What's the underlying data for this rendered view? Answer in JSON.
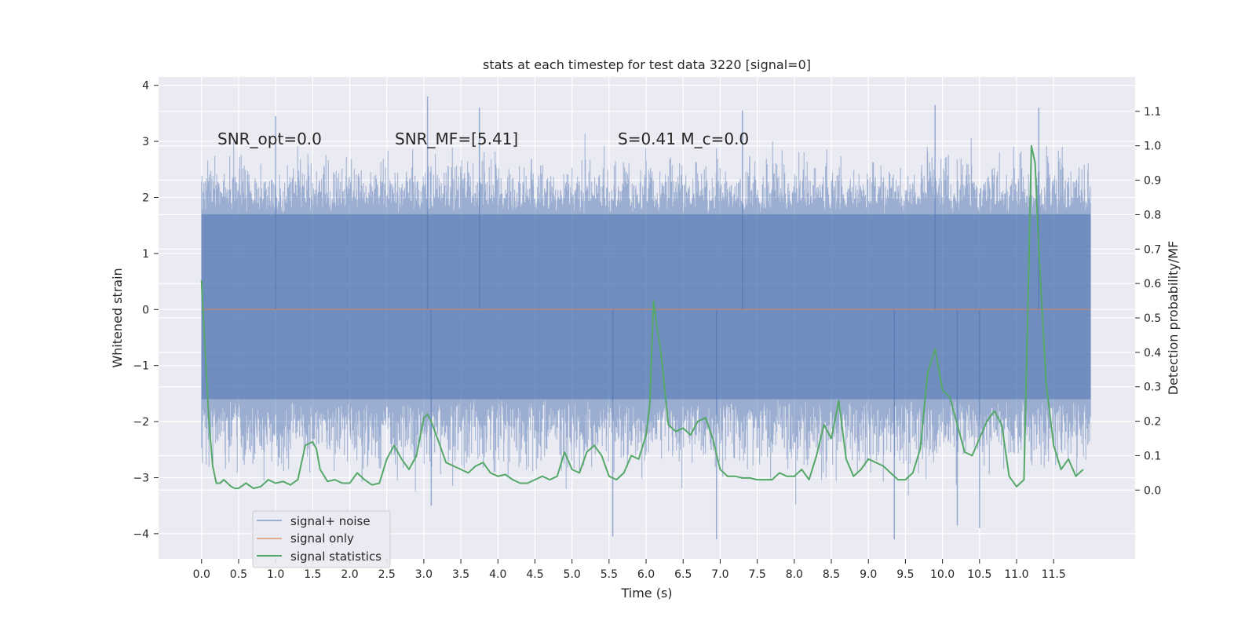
{
  "chart_data": {
    "type": "line",
    "title": "stats at each timestep for test data 3220 [signal=0]",
    "xlabel": "Time (s)",
    "ylabel_left": "Whitened strain",
    "ylabel_right": "Detection probability/MF",
    "xlim": [
      -0.58,
      12.6
    ],
    "ylim_left": [
      -4.45,
      4.15
    ],
    "ylim_right": [
      -0.2,
      1.2
    ],
    "x_ticks": [
      0.0,
      0.5,
      1.0,
      1.5,
      2.0,
      2.5,
      3.0,
      3.5,
      4.0,
      4.5,
      5.0,
      5.5,
      6.0,
      6.5,
      7.0,
      7.5,
      8.0,
      8.5,
      9.0,
      9.5,
      10.0,
      10.5,
      11.0,
      11.5
    ],
    "x_tick_labels": [
      "0.0",
      "0.5",
      "1.0",
      "1.5",
      "2.0",
      "2.5",
      "3.0",
      "3.5",
      "4.0",
      "4.5",
      "5.0",
      "5.5",
      "6.0",
      "6.5",
      "7.0",
      "7.5",
      "8.0",
      "8.5",
      "9.0",
      "9.5",
      "10.0",
      "10.5",
      "11.0",
      "11.5"
    ],
    "y_ticks_left": [
      4,
      3,
      2,
      1,
      0,
      -1,
      -2,
      -3,
      -4
    ],
    "y_tick_labels_left": [
      "4",
      "3",
      "2",
      "1",
      "0",
      "−1",
      "−2",
      "−3",
      "−4"
    ],
    "y_ticks_right": [
      1.1,
      1.0,
      0.9,
      0.8,
      0.7,
      0.6,
      0.5,
      0.4,
      0.3,
      0.2,
      0.1,
      0.0
    ],
    "y_tick_labels_right": [
      "1.1",
      "1.0",
      "0.9",
      "0.8",
      "0.7",
      "0.6",
      "0.5",
      "0.4",
      "0.3",
      "0.2",
      "0.1",
      "0.0"
    ],
    "grid": true,
    "legend_placement": "lower-left",
    "annotations": [
      {
        "text": "SNR_opt=0.0",
        "x": 0.2,
        "y": 3.0
      },
      {
        "text": "SNR_MF=[5.41]",
        "x": 2.6,
        "y": 3.0
      },
      {
        "text": "S=0.41   M_c=0.0",
        "x": 5.6,
        "y": 3.0
      }
    ],
    "series": [
      {
        "name": "signal+ noise",
        "axis": "left",
        "color": "#4c72b0",
        "opacity": 0.5,
        "x_range": [
          0.0,
          12.0
        ],
        "typical_band": [
          -1.6,
          1.7
        ],
        "min": -4.1,
        "max": 3.8,
        "extremes": [
          {
            "x": 3.05,
            "y": 3.8
          },
          {
            "x": 3.75,
            "y": 3.6
          },
          {
            "x": 9.9,
            "y": 3.65
          },
          {
            "x": 11.3,
            "y": 3.6
          },
          {
            "x": 1.0,
            "y": 3.45
          },
          {
            "x": 7.3,
            "y": 3.55
          },
          {
            "x": 5.55,
            "y": -4.05
          },
          {
            "x": 6.95,
            "y": -4.1
          },
          {
            "x": 9.35,
            "y": -4.1
          },
          {
            "x": 10.2,
            "y": -3.85
          },
          {
            "x": 10.5,
            "y": -3.9
          },
          {
            "x": 3.1,
            "y": -3.5
          }
        ]
      },
      {
        "name": "signal only",
        "axis": "left",
        "color": "#dd8452",
        "x": [
          0.0,
          12.0
        ],
        "y": [
          0.0,
          0.0
        ]
      },
      {
        "name": "signal statistics",
        "axis": "right",
        "color": "#55a868",
        "x": [
          0.0,
          0.05,
          0.1,
          0.15,
          0.2,
          0.25,
          0.3,
          0.35,
          0.4,
          0.45,
          0.5,
          0.6,
          0.7,
          0.8,
          0.9,
          1.0,
          1.1,
          1.2,
          1.3,
          1.4,
          1.5,
          1.55,
          1.6,
          1.7,
          1.8,
          1.9,
          2.0,
          2.1,
          2.2,
          2.3,
          2.4,
          2.5,
          2.6,
          2.7,
          2.8,
          2.9,
          3.0,
          3.05,
          3.1,
          3.2,
          3.3,
          3.4,
          3.5,
          3.6,
          3.7,
          3.8,
          3.9,
          4.0,
          4.1,
          4.2,
          4.3,
          4.4,
          4.5,
          4.6,
          4.7,
          4.8,
          4.9,
          5.0,
          5.1,
          5.2,
          5.3,
          5.4,
          5.5,
          5.6,
          5.7,
          5.8,
          5.9,
          6.0,
          6.05,
          6.1,
          6.15,
          6.2,
          6.3,
          6.4,
          6.5,
          6.6,
          6.7,
          6.8,
          6.9,
          7.0,
          7.1,
          7.2,
          7.3,
          7.4,
          7.5,
          7.6,
          7.7,
          7.8,
          7.9,
          8.0,
          8.1,
          8.2,
          8.3,
          8.4,
          8.5,
          8.6,
          8.7,
          8.8,
          8.9,
          9.0,
          9.1,
          9.2,
          9.3,
          9.4,
          9.5,
          9.6,
          9.7,
          9.8,
          9.9,
          10.0,
          10.1,
          10.2,
          10.3,
          10.4,
          10.5,
          10.6,
          10.7,
          10.8,
          10.9,
          11.0,
          11.05,
          11.1,
          11.15,
          11.2,
          11.25,
          11.3,
          11.4,
          11.5,
          11.6,
          11.7,
          11.8,
          11.9
        ],
        "y": [
          0.61,
          0.4,
          0.2,
          0.07,
          0.02,
          0.02,
          0.03,
          0.02,
          0.01,
          0.005,
          0.005,
          0.02,
          0.005,
          0.01,
          0.03,
          0.02,
          0.025,
          0.015,
          0.03,
          0.13,
          0.14,
          0.12,
          0.06,
          0.025,
          0.03,
          0.02,
          0.02,
          0.05,
          0.03,
          0.015,
          0.02,
          0.09,
          0.13,
          0.09,
          0.06,
          0.1,
          0.21,
          0.22,
          0.2,
          0.14,
          0.08,
          0.07,
          0.06,
          0.05,
          0.07,
          0.08,
          0.05,
          0.04,
          0.045,
          0.03,
          0.02,
          0.02,
          0.03,
          0.04,
          0.03,
          0.04,
          0.11,
          0.06,
          0.05,
          0.11,
          0.13,
          0.1,
          0.04,
          0.03,
          0.05,
          0.1,
          0.09,
          0.16,
          0.25,
          0.55,
          0.47,
          0.4,
          0.19,
          0.17,
          0.18,
          0.16,
          0.2,
          0.21,
          0.15,
          0.06,
          0.04,
          0.04,
          0.035,
          0.035,
          0.03,
          0.03,
          0.03,
          0.05,
          0.04,
          0.04,
          0.06,
          0.03,
          0.1,
          0.19,
          0.15,
          0.26,
          0.09,
          0.04,
          0.06,
          0.09,
          0.08,
          0.07,
          0.05,
          0.03,
          0.03,
          0.05,
          0.12,
          0.34,
          0.41,
          0.29,
          0.27,
          0.19,
          0.11,
          0.1,
          0.15,
          0.2,
          0.23,
          0.19,
          0.04,
          0.01,
          0.02,
          0.03,
          0.5,
          1.0,
          0.95,
          0.7,
          0.31,
          0.13,
          0.06,
          0.09,
          0.04,
          0.06
        ]
      }
    ]
  }
}
